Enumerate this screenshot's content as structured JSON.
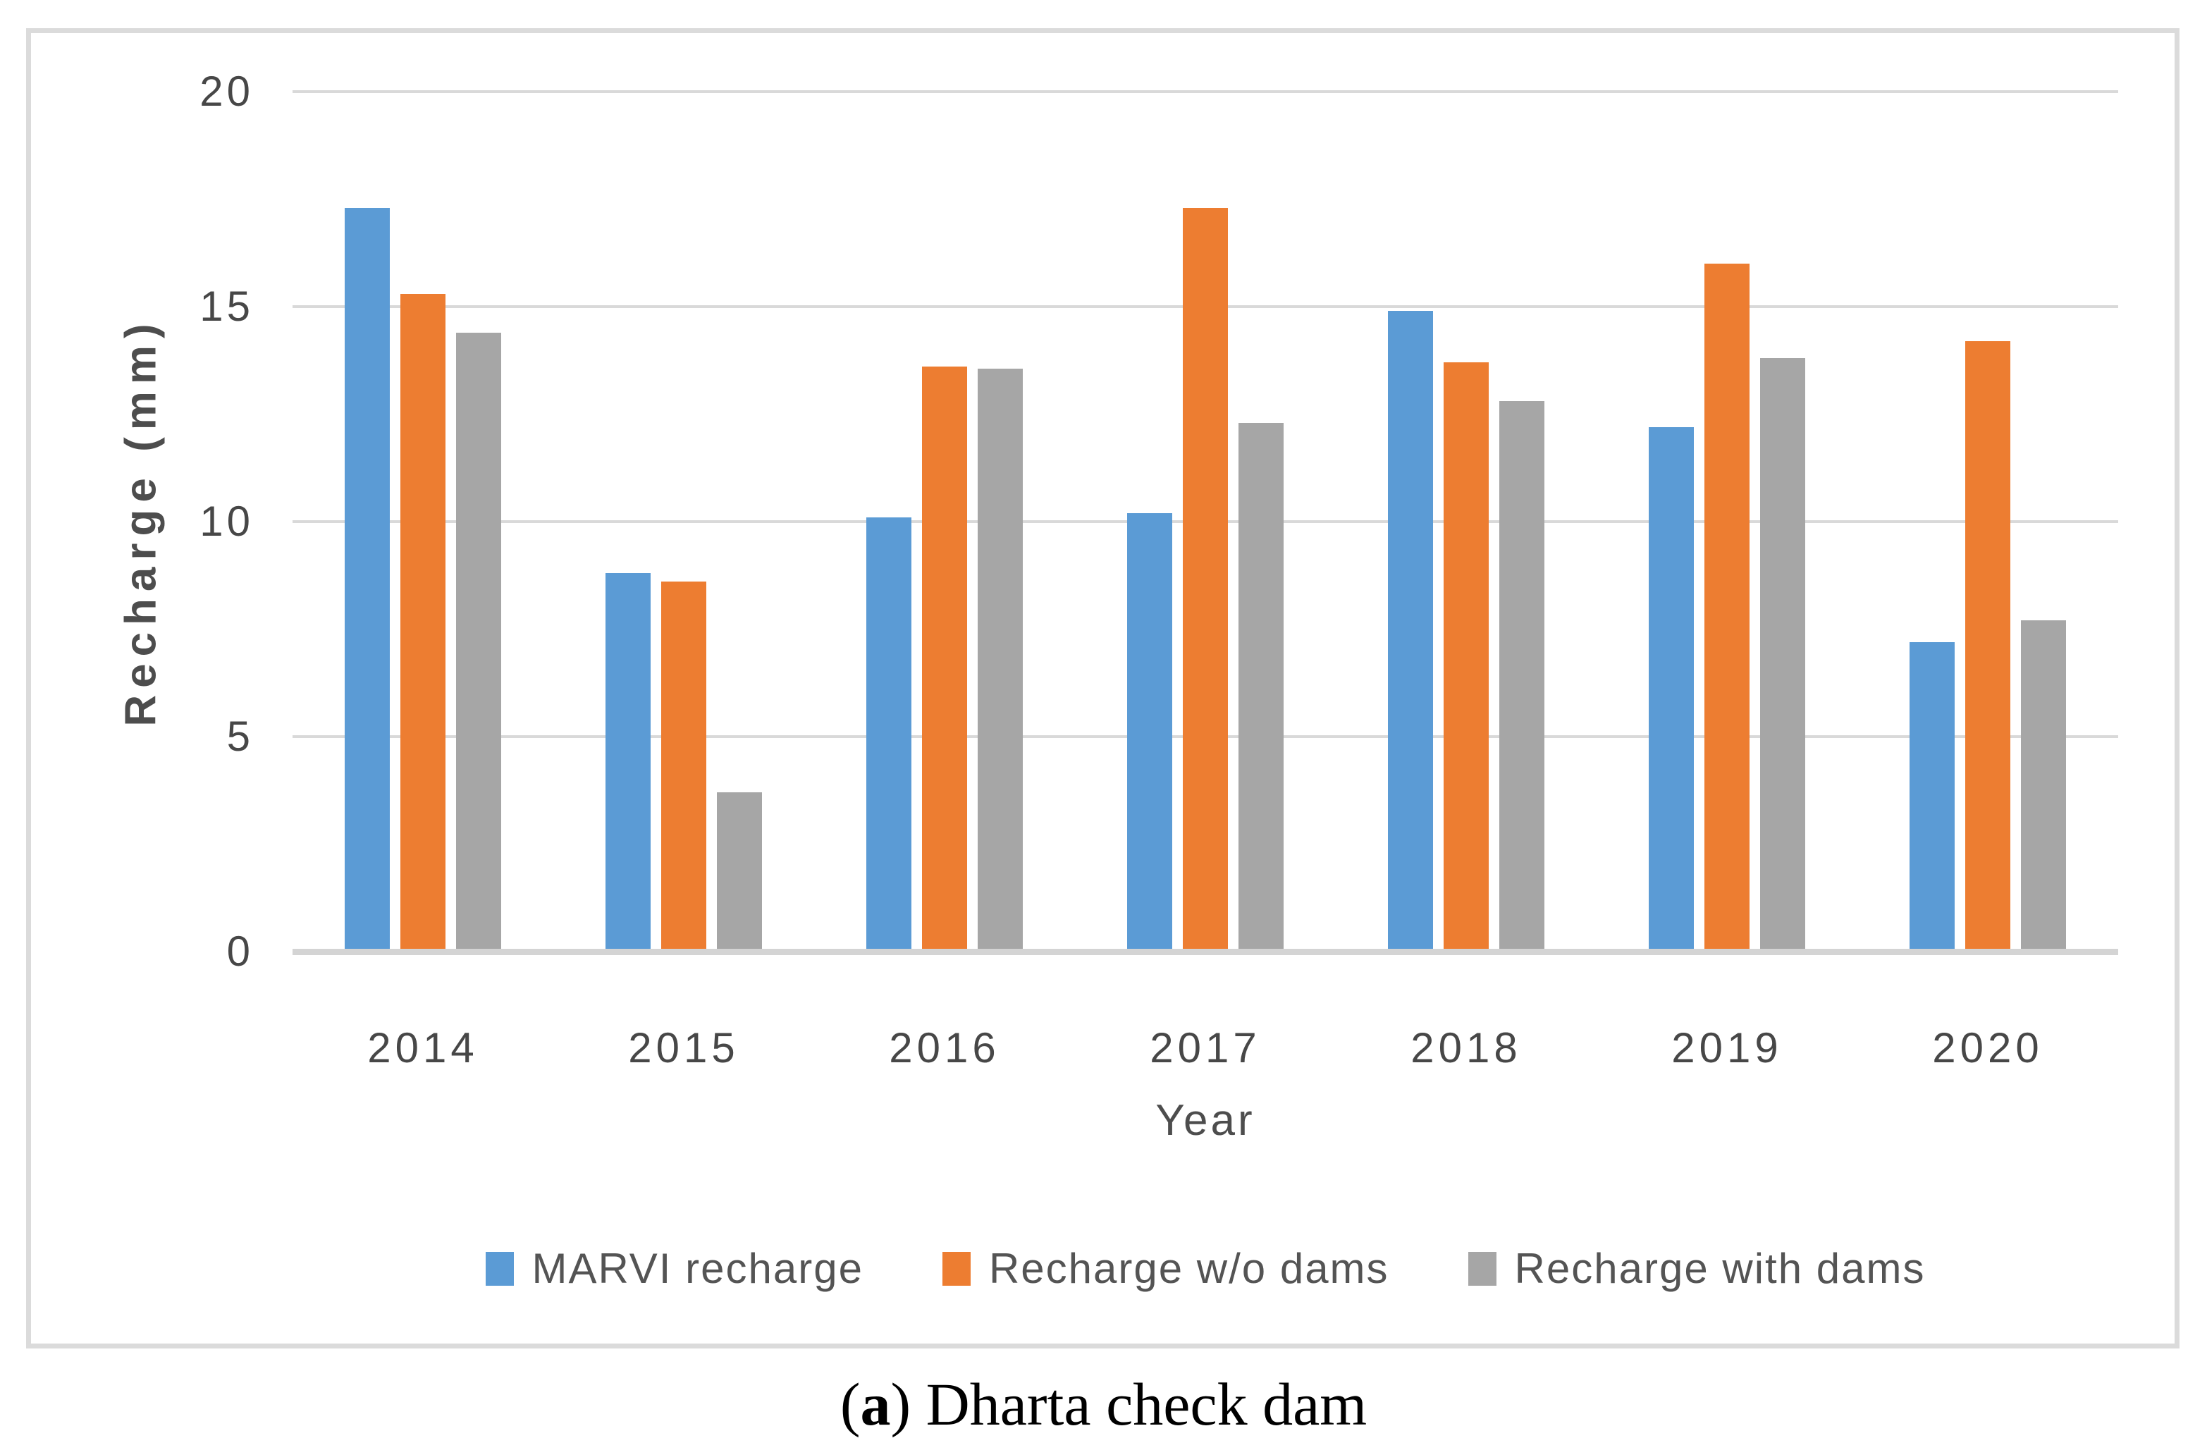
{
  "figure": {
    "caption_open": "(",
    "caption_letter": "a",
    "caption_rest": ") Dharta check dam"
  },
  "chart_data": {
    "type": "bar",
    "title": "",
    "categories": [
      "2014",
      "2015",
      "2016",
      "2017",
      "2018",
      "2019",
      "2020"
    ],
    "series": [
      {
        "name": "MARVI recharge",
        "color": "#5B9BD5",
        "values": [
          17.3,
          8.8,
          10.1,
          10.2,
          14.9,
          12.2,
          7.2
        ]
      },
      {
        "name": "Recharge w/o dams",
        "color": "#ED7D31",
        "values": [
          15.3,
          8.6,
          13.6,
          17.3,
          13.7,
          16.0,
          14.2
        ]
      },
      {
        "name": "Recharge with dams",
        "color": "#A6A6A6",
        "values": [
          14.4,
          3.7,
          13.55,
          12.3,
          12.8,
          13.8,
          7.7
        ]
      }
    ],
    "xlabel": "Year",
    "ylabel": "Recharge (mm)",
    "ylim": [
      0,
      20
    ],
    "ytick_step": 5,
    "yticks": [
      "0",
      "5",
      "10",
      "15",
      "20"
    ],
    "grid": true,
    "legend_position": "bottom"
  }
}
